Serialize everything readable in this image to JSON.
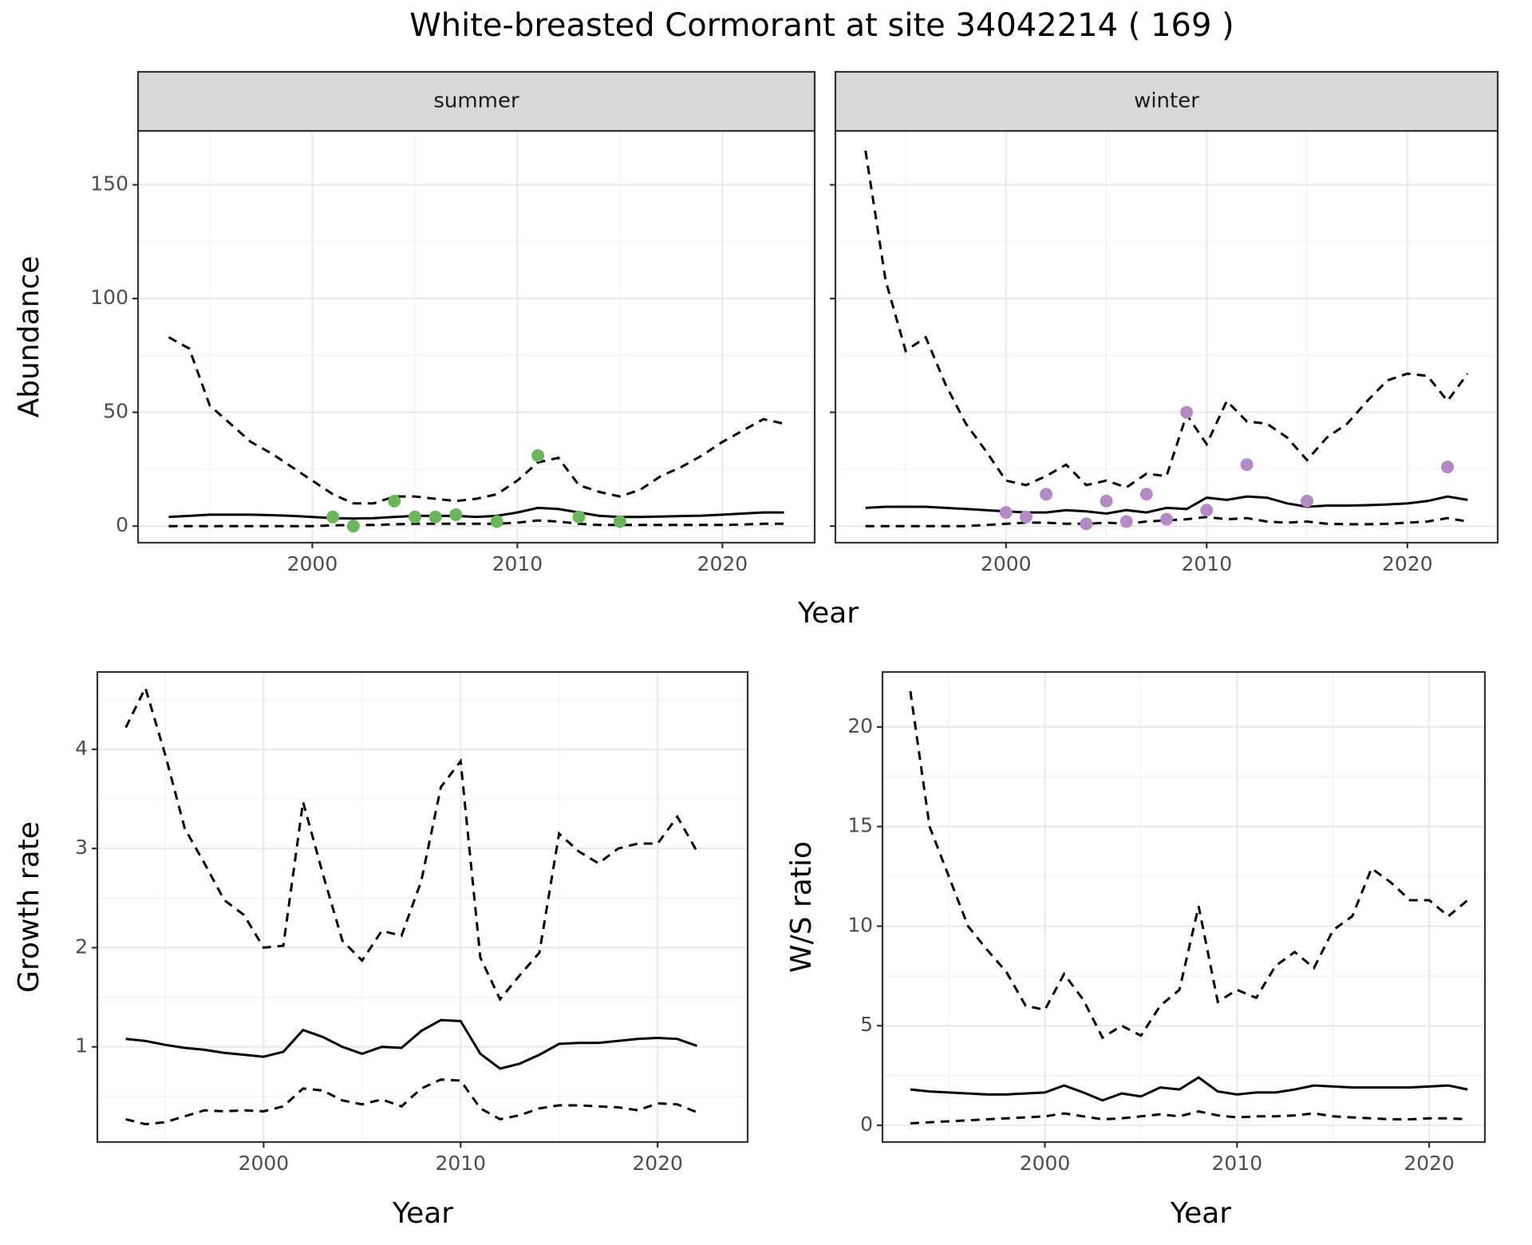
{
  "title": "White-breasted Cormorant at site 34042214 ( 169 )",
  "chart_data": [
    {
      "type": "line",
      "strip": "summer",
      "ylabel": "Abundance",
      "xlabel": "Year",
      "xlim": [
        1991.5,
        2024.5
      ],
      "ylim": [
        -7.3,
        173.7
      ],
      "xticks": [
        2000,
        2010,
        2020
      ],
      "yticks": [
        0,
        50,
        100,
        150
      ],
      "ytick_labels": true,
      "grid": true,
      "x": [
        1993,
        1994,
        1995,
        1996,
        1997,
        1998,
        1999,
        2000,
        2001,
        2002,
        2003,
        2004,
        2005,
        2006,
        2007,
        2008,
        2009,
        2010,
        2011,
        2012,
        2013,
        2014,
        2015,
        2016,
        2017,
        2018,
        2019,
        2020,
        2021,
        2022,
        2023
      ],
      "series": [
        {
          "color": "#000000",
          "linestyle": "solid",
          "values": [
            4,
            4.5,
            5,
            5,
            5,
            4.8,
            4.5,
            4,
            3.5,
            3.3,
            3.5,
            4,
            4.5,
            4.5,
            4.5,
            4,
            4.5,
            6,
            8,
            7.5,
            6,
            4.5,
            4,
            4,
            4.2,
            4.4,
            4.6,
            5,
            5.5,
            6,
            6
          ]
        },
        {
          "color": "#000000",
          "linestyle": "dashed",
          "values": [
            83,
            78,
            53,
            45,
            37,
            32,
            26,
            20,
            14,
            10,
            10,
            13,
            13,
            12,
            11,
            12,
            14,
            20,
            28,
            30,
            18,
            15,
            13,
            16,
            22,
            26,
            31,
            37,
            42,
            47,
            45
          ]
        },
        {
          "color": "#000000",
          "linestyle": "dashed",
          "values": [
            0,
            0,
            0,
            0,
            0,
            0,
            0,
            0,
            0.3,
            0.5,
            0.5,
            0.8,
            1,
            1,
            1,
            1,
            1,
            1.5,
            2.5,
            2,
            1,
            0.5,
            0.5,
            0.5,
            0.5,
            0.5,
            0.5,
            0.5,
            0.7,
            1,
            1
          ]
        }
      ],
      "points": {
        "color": "#6ab85a",
        "x": [
          2001,
          2002,
          2004,
          2005,
          2006,
          2007,
          2009,
          2011,
          2013,
          2015
        ],
        "values": [
          4,
          0,
          11,
          4,
          4,
          5,
          2,
          31,
          4,
          2
        ]
      }
    },
    {
      "type": "line",
      "strip": "winter",
      "xlim": [
        1991.5,
        2024.5
      ],
      "ylim": [
        -7.3,
        173.7
      ],
      "xticks": [
        2000,
        2010,
        2020
      ],
      "yticks": [
        0,
        50,
        100,
        150
      ],
      "ytick_labels": false,
      "grid": true,
      "x": [
        1993,
        1994,
        1995,
        1996,
        1997,
        1998,
        1999,
        2000,
        2001,
        2002,
        2003,
        2004,
        2005,
        2006,
        2007,
        2008,
        2009,
        2010,
        2011,
        2012,
        2013,
        2014,
        2015,
        2016,
        2017,
        2018,
        2019,
        2020,
        2021,
        2022,
        2023
      ],
      "series": [
        {
          "color": "#000000",
          "linestyle": "solid",
          "values": [
            8,
            8.5,
            8.5,
            8.5,
            8,
            7.5,
            7,
            6.5,
            6,
            6,
            7,
            6.5,
            5.5,
            7,
            6,
            8,
            7.5,
            12.5,
            11.5,
            13,
            12.5,
            10,
            8.5,
            9,
            9,
            9.2,
            9.5,
            10,
            11,
            13,
            11.5
          ]
        },
        {
          "color": "#000000",
          "linestyle": "dashed",
          "values": [
            165,
            108,
            77,
            83,
            62,
            45,
            33,
            20,
            18,
            22,
            27,
            18,
            20,
            17,
            23,
            22,
            49,
            36,
            55,
            46,
            45,
            39,
            29,
            39,
            45,
            55,
            64,
            67,
            66,
            55,
            67
          ]
        },
        {
          "color": "#000000",
          "linestyle": "dashed",
          "values": [
            0,
            0,
            0,
            0,
            0,
            0,
            0.5,
            1,
            1.5,
            1.5,
            1,
            1,
            1.5,
            1,
            2,
            2.5,
            3,
            4,
            3,
            3.5,
            2,
            1.5,
            2,
            1,
            0.8,
            0.8,
            1,
            1.5,
            2,
            3.5,
            2
          ]
        }
      ],
      "points": {
        "color": "#b48ac6",
        "x": [
          2000,
          2001,
          2002,
          2004,
          2005,
          2006,
          2007,
          2008,
          2009,
          2010,
          2012,
          2015,
          2022
        ],
        "values": [
          6,
          4,
          14,
          1,
          11,
          2,
          14,
          3,
          50,
          7,
          27,
          11,
          26
        ]
      }
    },
    {
      "type": "line",
      "ylabel": "Growth rate",
      "xlabel": "Year",
      "xlim": [
        1991.56,
        2024.57
      ],
      "ylim": [
        0.04,
        4.78
      ],
      "xticks": [
        2000,
        2010,
        2020
      ],
      "yticks": [
        1,
        2,
        3,
        4
      ],
      "ytick_labels": true,
      "grid": true,
      "x": [
        1993,
        1994,
        1995,
        1996,
        1997,
        1998,
        1999,
        2000,
        2001,
        2002,
        2003,
        2004,
        2005,
        2006,
        2007,
        2008,
        2009,
        2010,
        2011,
        2012,
        2013,
        2014,
        2015,
        2016,
        2017,
        2018,
        2019,
        2020,
        2021,
        2022
      ],
      "series": [
        {
          "color": "#000000",
          "linestyle": "solid",
          "values": [
            1.08,
            1.06,
            1.02,
            0.99,
            0.97,
            0.94,
            0.92,
            0.9,
            0.95,
            1.17,
            1.1,
            1.0,
            0.93,
            1.0,
            0.99,
            1.16,
            1.27,
            1.26,
            0.93,
            0.78,
            0.83,
            0.92,
            1.03,
            1.04,
            1.04,
            1.06,
            1.08,
            1.09,
            1.08,
            1.01
          ]
        },
        {
          "color": "#000000",
          "linestyle": "dashed",
          "values": [
            4.22,
            4.62,
            3.95,
            3.2,
            2.85,
            2.48,
            2.33,
            2.0,
            2.02,
            3.47,
            2.75,
            2.07,
            1.87,
            2.17,
            2.12,
            2.67,
            3.62,
            3.88,
            1.9,
            1.48,
            1.72,
            1.95,
            3.15,
            2.97,
            2.85,
            3.0,
            3.05,
            3.05,
            3.32,
            2.97
          ]
        },
        {
          "color": "#000000",
          "linestyle": "dashed",
          "values": [
            0.27,
            0.22,
            0.24,
            0.3,
            0.36,
            0.35,
            0.36,
            0.35,
            0.4,
            0.58,
            0.56,
            0.46,
            0.42,
            0.47,
            0.4,
            0.58,
            0.67,
            0.66,
            0.38,
            0.27,
            0.31,
            0.38,
            0.41,
            0.41,
            0.4,
            0.39,
            0.36,
            0.43,
            0.42,
            0.34
          ]
        }
      ]
    },
    {
      "type": "line",
      "ylabel": "W/S ratio",
      "xlabel": "Year",
      "xlim": [
        1991.55,
        2022.9
      ],
      "ylim": [
        -0.84,
        22.76
      ],
      "xticks": [
        2000,
        2010,
        2020
      ],
      "yticks": [
        0,
        5,
        10,
        15,
        20
      ],
      "ytick_labels": true,
      "grid": true,
      "x": [
        1993,
        1994,
        1995,
        1996,
        1997,
        1998,
        1999,
        2000,
        2001,
        2002,
        2003,
        2004,
        2005,
        2006,
        2007,
        2008,
        2009,
        2010,
        2011,
        2012,
        2013,
        2014,
        2015,
        2016,
        2017,
        2018,
        2019,
        2020,
        2021,
        2022
      ],
      "series": [
        {
          "color": "#000000",
          "linestyle": "solid",
          "values": [
            1.8,
            1.7,
            1.65,
            1.6,
            1.55,
            1.55,
            1.6,
            1.65,
            2.0,
            1.65,
            1.25,
            1.6,
            1.45,
            1.9,
            1.8,
            2.4,
            1.7,
            1.55,
            1.65,
            1.65,
            1.8,
            2.0,
            1.95,
            1.9,
            1.9,
            1.9,
            1.9,
            1.95,
            2.0,
            1.8
          ]
        },
        {
          "color": "#000000",
          "linestyle": "dashed",
          "values": [
            21.8,
            15,
            12.5,
            10,
            8.8,
            7.7,
            6,
            5.8,
            7.6,
            6.3,
            4.4,
            5,
            4.5,
            6,
            6.8,
            11,
            6.2,
            6.8,
            6.4,
            8,
            8.7,
            7.9,
            9.8,
            10.5,
            12.9,
            12.2,
            11.3,
            11.3,
            10.5,
            11.3
          ]
        },
        {
          "color": "#000000",
          "linestyle": "dashed",
          "values": [
            0.1,
            0.15,
            0.2,
            0.25,
            0.3,
            0.35,
            0.4,
            0.45,
            0.6,
            0.45,
            0.3,
            0.35,
            0.45,
            0.55,
            0.45,
            0.7,
            0.5,
            0.4,
            0.45,
            0.45,
            0.5,
            0.6,
            0.45,
            0.4,
            0.35,
            0.3,
            0.3,
            0.35,
            0.35,
            0.3
          ]
        }
      ]
    }
  ]
}
